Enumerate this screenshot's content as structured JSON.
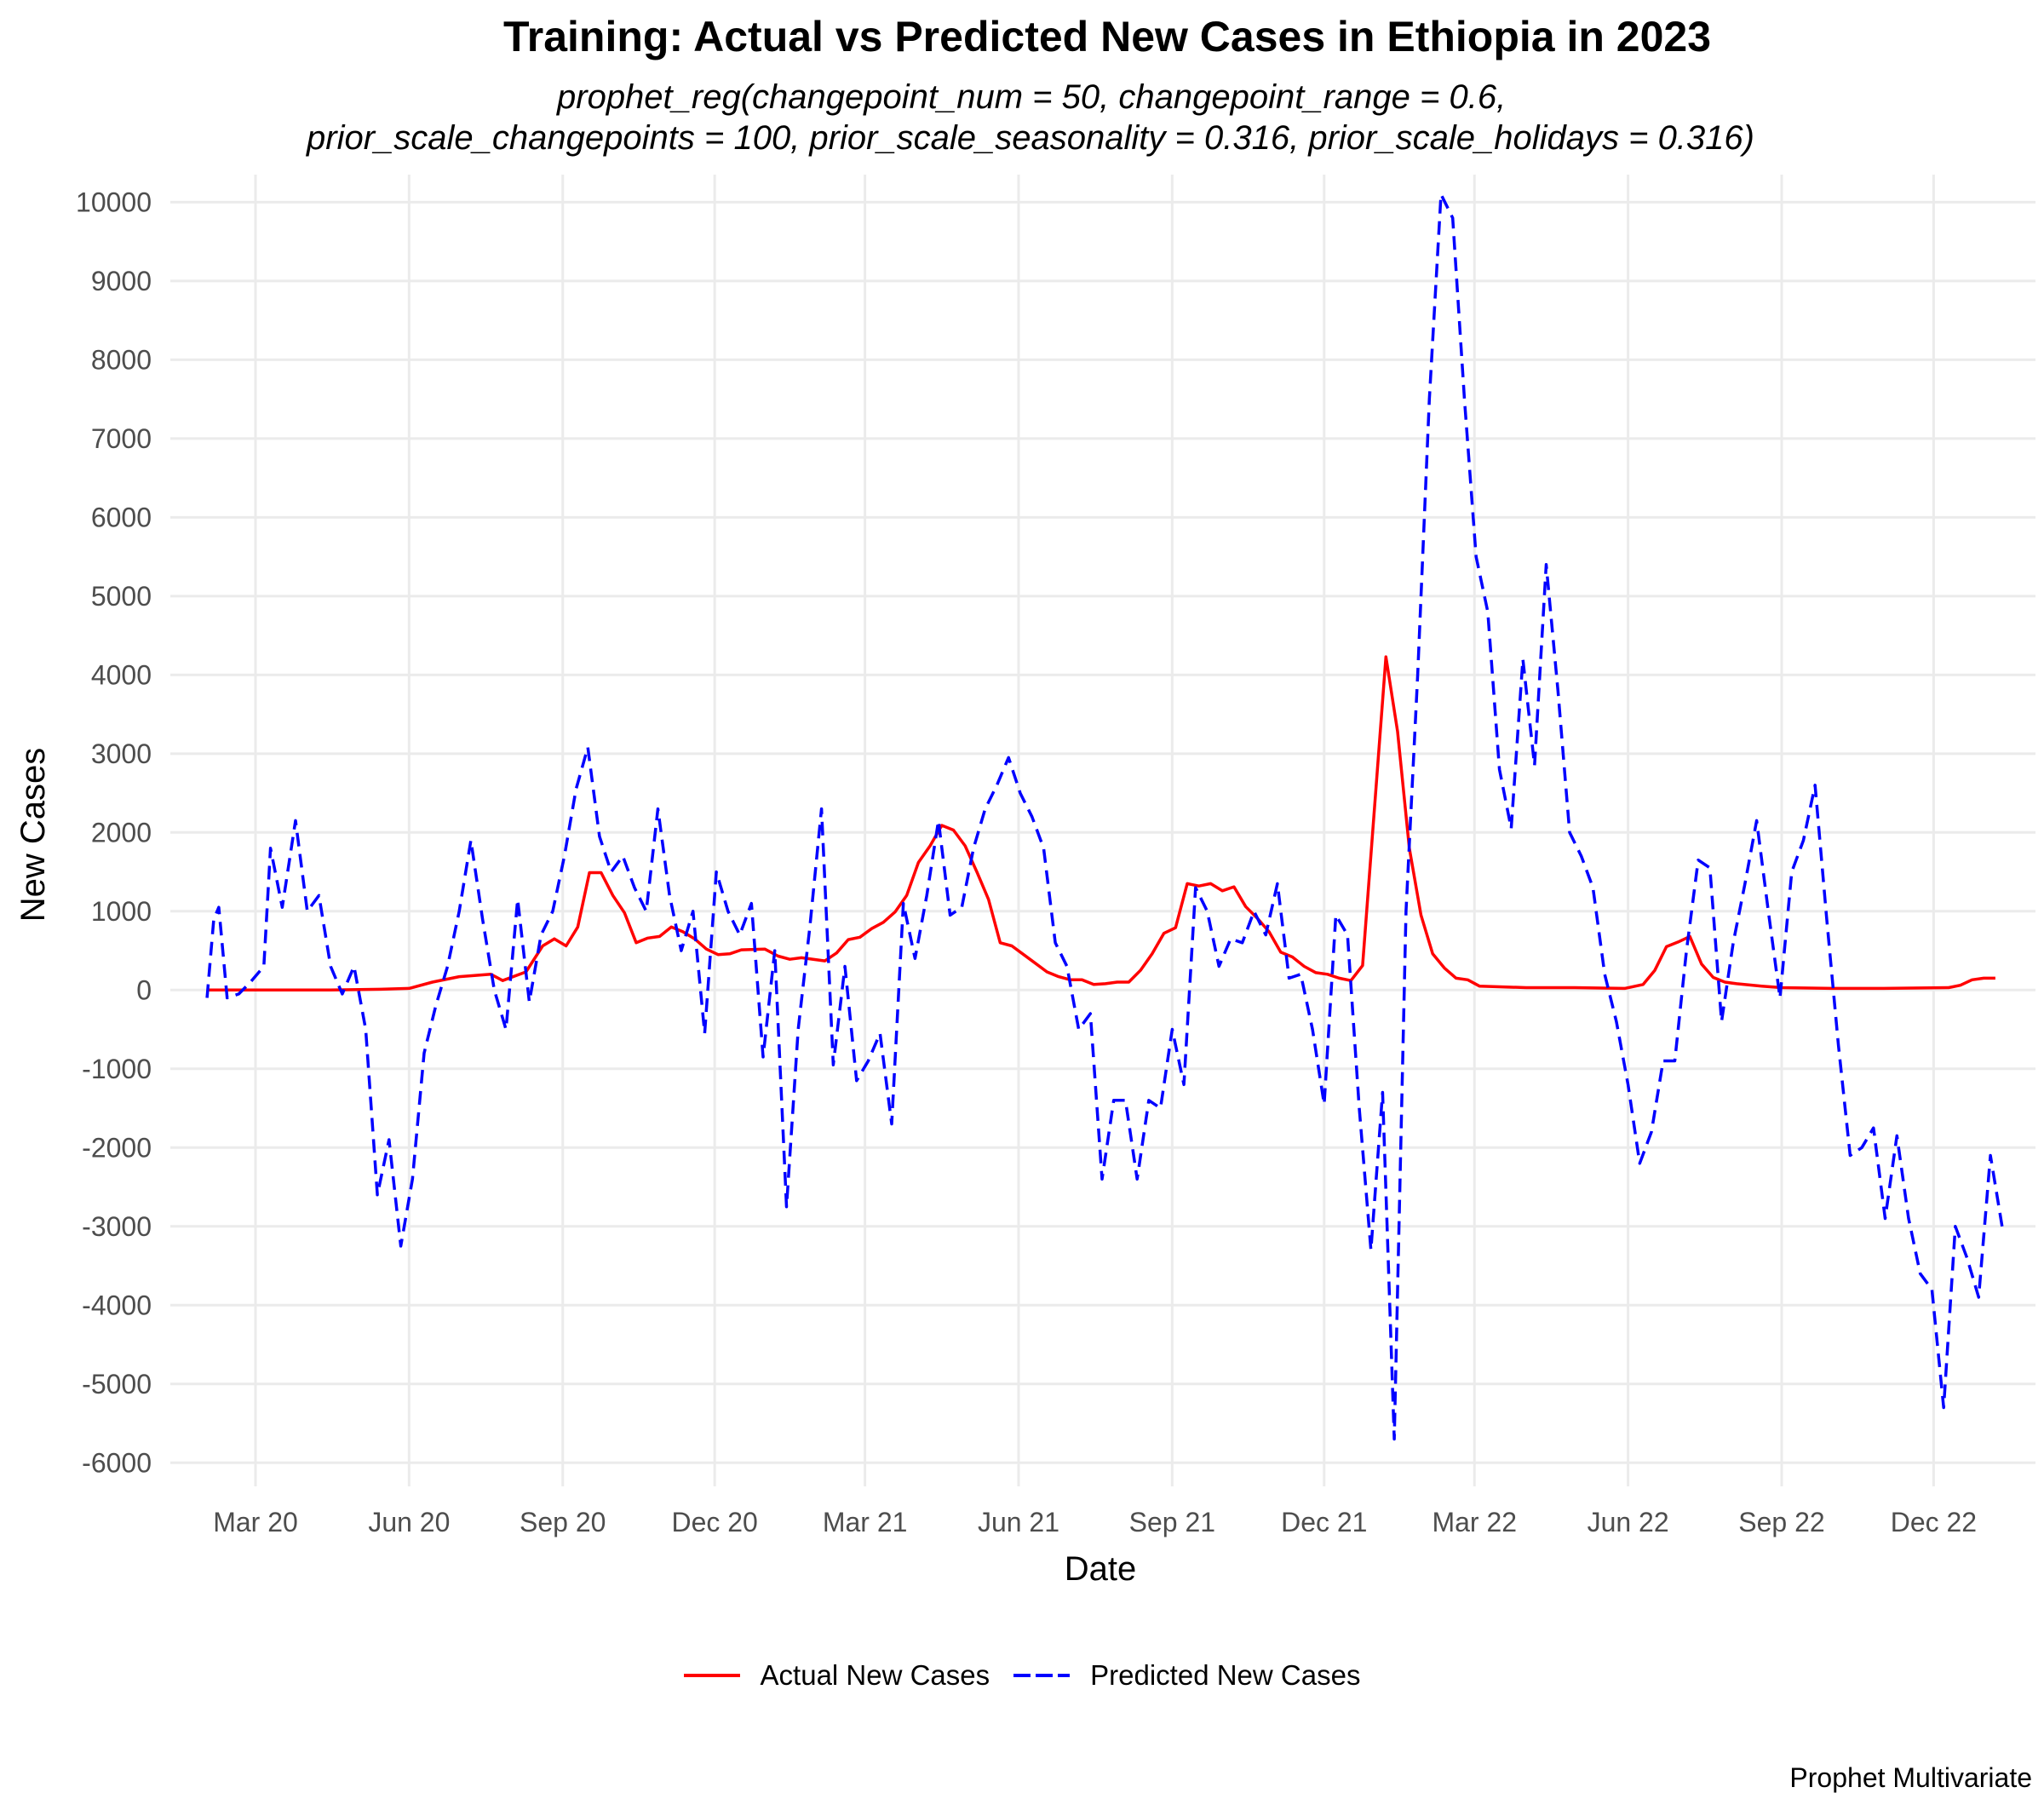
{
  "chart_data": {
    "type": "line",
    "title": "Training: Actual vs Predicted New Cases in Ethiopia in 2023",
    "subtitle_lines": [
      "prophet_reg(changepoint_num = 50, changepoint_range = 0.6,",
      "prior_scale_changepoints = 100, prior_scale_seasonality = 0.316, prior_scale_holidays = 0.316)"
    ],
    "xlabel": "Date",
    "ylabel": "New Cases",
    "caption": "Prophet Multivariate",
    "x_ticks": [
      "Mar 20",
      "Jun 20",
      "Sep 20",
      "Dec 20",
      "Mar 21",
      "Jun 21",
      "Sep 21",
      "Dec 21",
      "Mar 22",
      "Jun 22",
      "Sep 22",
      "Dec 22"
    ],
    "y_ticks": [
      "-6000",
      "-5000",
      "-4000",
      "-3000",
      "-2000",
      "-1000",
      "0",
      "1000",
      "2000",
      "3000",
      "4000",
      "5000",
      "6000",
      "7000",
      "8000",
      "9000",
      "10000"
    ],
    "ylim": [
      -6300,
      10350
    ],
    "xlim": [
      "2020-01-10",
      "2023-01-31"
    ],
    "grid": true,
    "legend_position": "bottom",
    "series": [
      {
        "name": "Actual New Cases",
        "color": "#ff0000",
        "dash": "solid",
        "points": [
          [
            "2020-02-01",
            0
          ],
          [
            "2020-02-20",
            0
          ],
          [
            "2020-03-15",
            0
          ],
          [
            "2020-04-15",
            0
          ],
          [
            "2020-05-15",
            10
          ],
          [
            "2020-06-01",
            20
          ],
          [
            "2020-06-15",
            100
          ],
          [
            "2020-07-01",
            170
          ],
          [
            "2020-07-20",
            200
          ],
          [
            "2020-07-27",
            120
          ],
          [
            "2020-08-10",
            230
          ],
          [
            "2020-08-20",
            560
          ],
          [
            "2020-08-27",
            650
          ],
          [
            "2020-09-03",
            560
          ],
          [
            "2020-09-10",
            800
          ],
          [
            "2020-09-17",
            1490
          ],
          [
            "2020-09-24",
            1490
          ],
          [
            "2020-10-01",
            1200
          ],
          [
            "2020-10-08",
            980
          ],
          [
            "2020-10-15",
            600
          ],
          [
            "2020-10-22",
            660
          ],
          [
            "2020-10-29",
            680
          ],
          [
            "2020-11-05",
            800
          ],
          [
            "2020-11-12",
            740
          ],
          [
            "2020-11-19",
            650
          ],
          [
            "2020-11-26",
            520
          ],
          [
            "2020-12-03",
            450
          ],
          [
            "2020-12-10",
            460
          ],
          [
            "2020-12-17",
            510
          ],
          [
            "2020-12-31",
            520
          ],
          [
            "2021-01-08",
            430
          ],
          [
            "2021-01-15",
            390
          ],
          [
            "2021-01-22",
            410
          ],
          [
            "2021-02-05",
            370
          ],
          [
            "2021-02-12",
            470
          ],
          [
            "2021-02-19",
            640
          ],
          [
            "2021-02-26",
            670
          ],
          [
            "2021-03-05",
            780
          ],
          [
            "2021-03-12",
            860
          ],
          [
            "2021-03-19",
            990
          ],
          [
            "2021-03-26",
            1200
          ],
          [
            "2021-04-02",
            1620
          ],
          [
            "2021-04-09",
            1830
          ],
          [
            "2021-04-16",
            2090
          ],
          [
            "2021-04-23",
            2030
          ],
          [
            "2021-04-30",
            1830
          ],
          [
            "2021-05-07",
            1500
          ],
          [
            "2021-05-14",
            1150
          ],
          [
            "2021-05-21",
            600
          ],
          [
            "2021-05-28",
            560
          ],
          [
            "2021-06-04",
            450
          ],
          [
            "2021-06-11",
            340
          ],
          [
            "2021-06-18",
            230
          ],
          [
            "2021-06-25",
            170
          ],
          [
            "2021-07-02",
            130
          ],
          [
            "2021-07-09",
            130
          ],
          [
            "2021-07-16",
            70
          ],
          [
            "2021-07-23",
            80
          ],
          [
            "2021-07-30",
            100
          ],
          [
            "2021-08-06",
            100
          ],
          [
            "2021-08-13",
            250
          ],
          [
            "2021-08-20",
            460
          ],
          [
            "2021-08-27",
            720
          ],
          [
            "2021-09-03",
            790
          ],
          [
            "2021-09-10",
            1350
          ],
          [
            "2021-09-17",
            1320
          ],
          [
            "2021-09-24",
            1350
          ],
          [
            "2021-10-01",
            1260
          ],
          [
            "2021-10-08",
            1310
          ],
          [
            "2021-10-15",
            1060
          ],
          [
            "2021-10-22",
            910
          ],
          [
            "2021-10-29",
            740
          ],
          [
            "2021-11-05",
            480
          ],
          [
            "2021-11-12",
            420
          ],
          [
            "2021-11-19",
            300
          ],
          [
            "2021-11-26",
            220
          ],
          [
            "2021-12-03",
            200
          ],
          [
            "2021-12-10",
            150
          ],
          [
            "2021-12-17",
            120
          ],
          [
            "2021-12-24",
            310
          ],
          [
            "2022-01-07",
            4230
          ],
          [
            "2022-01-14",
            3280
          ],
          [
            "2022-01-21",
            1800
          ],
          [
            "2022-01-28",
            950
          ],
          [
            "2022-02-04",
            460
          ],
          [
            "2022-02-11",
            280
          ],
          [
            "2022-02-18",
            150
          ],
          [
            "2022-02-25",
            130
          ],
          [
            "2022-03-04",
            50
          ],
          [
            "2022-03-18",
            40
          ],
          [
            "2022-04-01",
            30
          ],
          [
            "2022-04-30",
            30
          ],
          [
            "2022-05-30",
            20
          ],
          [
            "2022-06-10",
            70
          ],
          [
            "2022-06-17",
            250
          ],
          [
            "2022-06-24",
            550
          ],
          [
            "2022-07-01",
            610
          ],
          [
            "2022-07-08",
            680
          ],
          [
            "2022-07-15",
            330
          ],
          [
            "2022-07-22",
            160
          ],
          [
            "2022-07-29",
            100
          ],
          [
            "2022-08-05",
            80
          ],
          [
            "2022-08-20",
            50
          ],
          [
            "2022-09-01",
            30
          ],
          [
            "2022-10-01",
            20
          ],
          [
            "2022-11-01",
            20
          ],
          [
            "2022-12-10",
            30
          ],
          [
            "2022-12-17",
            60
          ],
          [
            "2022-12-24",
            130
          ],
          [
            "2022-12-31",
            150
          ],
          [
            "2023-01-07",
            150
          ]
        ]
      },
      {
        "name": "Predicted New Cases",
        "color": "#0000ff",
        "dash": "dashed",
        "points": [
          [
            "2020-02-01",
            -100
          ],
          [
            "2020-02-05",
            900
          ],
          [
            "2020-02-08",
            1050
          ],
          [
            "2020-02-13",
            -100
          ],
          [
            "2020-02-20",
            -50
          ],
          [
            "2020-02-27",
            100
          ],
          [
            "2020-03-06",
            300
          ],
          [
            "2020-03-10",
            1800
          ],
          [
            "2020-03-17",
            1050
          ],
          [
            "2020-03-25",
            2150
          ],
          [
            "2020-04-01",
            1000
          ],
          [
            "2020-04-08",
            1200
          ],
          [
            "2020-04-15",
            300
          ],
          [
            "2020-04-22",
            -50
          ],
          [
            "2020-04-29",
            300
          ],
          [
            "2020-05-06",
            -500
          ],
          [
            "2020-05-13",
            -2600
          ],
          [
            "2020-05-20",
            -1900
          ],
          [
            "2020-05-27",
            -3250
          ],
          [
            "2020-06-03",
            -2400
          ],
          [
            "2020-06-10",
            -800
          ],
          [
            "2020-06-17",
            -200
          ],
          [
            "2020-06-24",
            300
          ],
          [
            "2020-07-01",
            1000
          ],
          [
            "2020-07-08",
            1900
          ],
          [
            "2020-07-15",
            900
          ],
          [
            "2020-07-22",
            0
          ],
          [
            "2020-07-29",
            -500
          ],
          [
            "2020-08-05",
            1150
          ],
          [
            "2020-08-12",
            -150
          ],
          [
            "2020-08-19",
            700
          ],
          [
            "2020-08-26",
            1000
          ],
          [
            "2020-09-02",
            1700
          ],
          [
            "2020-09-09",
            2550
          ],
          [
            "2020-09-16",
            3080
          ],
          [
            "2020-09-23",
            1950
          ],
          [
            "2020-09-30",
            1500
          ],
          [
            "2020-10-07",
            1700
          ],
          [
            "2020-10-14",
            1300
          ],
          [
            "2020-10-21",
            1000
          ],
          [
            "2020-10-28",
            2300
          ],
          [
            "2020-11-04",
            1200
          ],
          [
            "2020-11-11",
            500
          ],
          [
            "2020-11-18",
            1000
          ],
          [
            "2020-11-25",
            -550
          ],
          [
            "2020-12-02",
            1500
          ],
          [
            "2020-12-09",
            1000
          ],
          [
            "2020-12-16",
            700
          ],
          [
            "2020-12-23",
            1100
          ],
          [
            "2020-12-30",
            -850
          ],
          [
            "2021-01-06",
            500
          ],
          [
            "2021-01-13",
            -2750
          ],
          [
            "2021-01-20",
            -500
          ],
          [
            "2021-01-27",
            800
          ],
          [
            "2021-02-03",
            2300
          ],
          [
            "2021-02-10",
            -950
          ],
          [
            "2021-02-17",
            300
          ],
          [
            "2021-02-24",
            -1150
          ],
          [
            "2021-03-03",
            -900
          ],
          [
            "2021-03-10",
            -550
          ],
          [
            "2021-03-17",
            -1700
          ],
          [
            "2021-03-24",
            1100
          ],
          [
            "2021-03-31",
            400
          ],
          [
            "2021-04-07",
            1200
          ],
          [
            "2021-04-14",
            2150
          ],
          [
            "2021-04-21",
            950
          ],
          [
            "2021-04-28",
            1050
          ],
          [
            "2021-05-05",
            1800
          ],
          [
            "2021-05-12",
            2300
          ],
          [
            "2021-05-19",
            2600
          ],
          [
            "2021-05-26",
            2950
          ],
          [
            "2021-06-02",
            2500
          ],
          [
            "2021-06-09",
            2200
          ],
          [
            "2021-06-16",
            1800
          ],
          [
            "2021-06-23",
            600
          ],
          [
            "2021-06-30",
            300
          ],
          [
            "2021-07-07",
            -500
          ],
          [
            "2021-07-14",
            -300
          ],
          [
            "2021-07-21",
            -2400
          ],
          [
            "2021-07-28",
            -1400
          ],
          [
            "2021-08-04",
            -1400
          ],
          [
            "2021-08-11",
            -2400
          ],
          [
            "2021-08-18",
            -1400
          ],
          [
            "2021-08-25",
            -1500
          ],
          [
            "2021-09-01",
            -500
          ],
          [
            "2021-09-08",
            -1200
          ],
          [
            "2021-09-15",
            1300
          ],
          [
            "2021-09-22",
            1000
          ],
          [
            "2021-09-29",
            300
          ],
          [
            "2021-10-06",
            650
          ],
          [
            "2021-10-13",
            600
          ],
          [
            "2021-10-20",
            1000
          ],
          [
            "2021-10-27",
            700
          ],
          [
            "2021-11-03",
            1350
          ],
          [
            "2021-11-10",
            150
          ],
          [
            "2021-11-17",
            200
          ],
          [
            "2021-11-24",
            -500
          ],
          [
            "2021-12-01",
            -1450
          ],
          [
            "2021-12-08",
            950
          ],
          [
            "2021-12-15",
            700
          ],
          [
            "2021-12-22",
            -1500
          ],
          [
            "2021-12-29",
            -3300
          ],
          [
            "2022-01-05",
            -1300
          ],
          [
            "2022-01-12",
            -5700
          ],
          [
            "2022-01-19",
            1000
          ],
          [
            "2022-01-26",
            4000
          ],
          [
            "2022-02-02",
            7500
          ],
          [
            "2022-02-09",
            10100
          ],
          [
            "2022-02-16",
            9800
          ],
          [
            "2022-02-23",
            7500
          ],
          [
            "2022-03-02",
            5500
          ],
          [
            "2022-03-09",
            4800
          ],
          [
            "2022-03-16",
            2800
          ],
          [
            "2022-03-23",
            2050
          ],
          [
            "2022-03-30",
            4200
          ],
          [
            "2022-04-06",
            2850
          ],
          [
            "2022-04-13",
            5400
          ],
          [
            "2022-04-20",
            3800
          ],
          [
            "2022-04-27",
            2000
          ],
          [
            "2022-05-04",
            1700
          ],
          [
            "2022-05-11",
            1300
          ],
          [
            "2022-05-18",
            200
          ],
          [
            "2022-05-25",
            -400
          ],
          [
            "2022-06-01",
            -1200
          ],
          [
            "2022-06-08",
            -2200
          ],
          [
            "2022-06-15",
            -1800
          ],
          [
            "2022-06-22",
            -900
          ],
          [
            "2022-06-29",
            -900
          ],
          [
            "2022-07-06",
            500
          ],
          [
            "2022-07-13",
            1650
          ],
          [
            "2022-07-20",
            1550
          ],
          [
            "2022-07-27",
            -400
          ],
          [
            "2022-08-03",
            600
          ],
          [
            "2022-08-10",
            1350
          ],
          [
            "2022-08-17",
            2150
          ],
          [
            "2022-08-24",
            1000
          ],
          [
            "2022-08-31",
            -100
          ],
          [
            "2022-09-07",
            1500
          ],
          [
            "2022-09-14",
            1900
          ],
          [
            "2022-09-21",
            2600
          ],
          [
            "2022-09-28",
            900
          ],
          [
            "2022-10-05",
            -700
          ],
          [
            "2022-10-12",
            -2100
          ],
          [
            "2022-10-19",
            -2000
          ],
          [
            "2022-10-26",
            -1750
          ],
          [
            "2022-11-02",
            -2900
          ],
          [
            "2022-11-09",
            -1850
          ],
          [
            "2022-11-16",
            -2900
          ],
          [
            "2022-11-23",
            -3600
          ],
          [
            "2022-11-30",
            -3800
          ],
          [
            "2022-12-07",
            -5300
          ],
          [
            "2022-12-14",
            -3000
          ],
          [
            "2022-12-21",
            -3400
          ],
          [
            "2022-12-28",
            -3900
          ],
          [
            "2023-01-04",
            -2100
          ],
          [
            "2023-01-11",
            -3000
          ]
        ]
      }
    ]
  }
}
